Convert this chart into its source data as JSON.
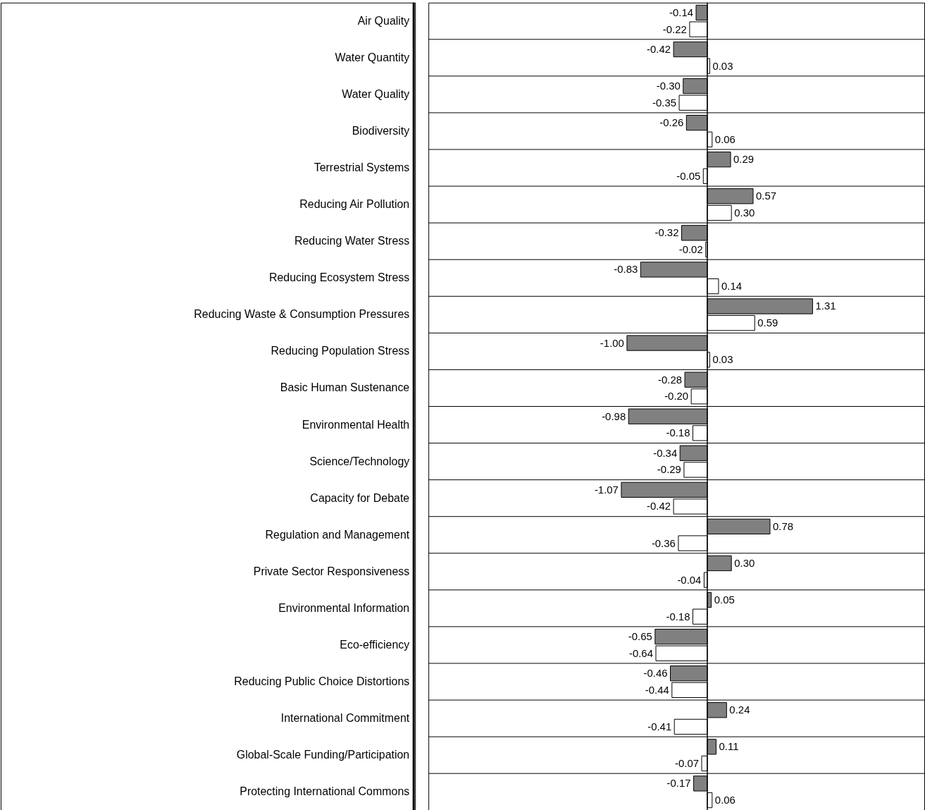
{
  "chart_data": {
    "type": "bar",
    "orientation": "horizontal",
    "categories": [
      "Air Quality",
      "Water Quantity",
      "Water Quality",
      "Biodiversity",
      "Terrestrial Systems",
      "Reducing Air Pollution",
      "Reducing Water Stress",
      "Reducing Ecosystem Stress",
      "Reducing Waste & Consumption Pressures",
      "Reducing Population Stress",
      "Basic Human Sustenance",
      "Environmental Health",
      "Science/Technology",
      "Capacity for Debate",
      "Regulation and Management",
      "Private Sector Responsiveness",
      "Environmental Information",
      "Eco-efficiency",
      "Reducing Public Choice Distortions",
      "International Commitment",
      "Global-Scale Funding/Participation",
      "Protecting International Commons"
    ],
    "series": [
      {
        "color": "#808080",
        "values": [
          -0.14,
          -0.42,
          -0.3,
          -0.26,
          0.29,
          0.57,
          -0.32,
          -0.83,
          1.31,
          -1.0,
          -0.28,
          -0.98,
          -0.34,
          -1.07,
          0.78,
          0.3,
          0.05,
          -0.65,
          -0.46,
          0.24,
          0.11,
          -0.17
        ],
        "value_labels": [
          "-0.14",
          "-0.42",
          "-0.30",
          "-0.26",
          "0.29",
          "0.57",
          "-0.32",
          "-0.83",
          "1.31",
          "-1.00",
          "-0.28",
          "-0.98",
          "-0.34",
          "-1.07",
          "0.78",
          "0.30",
          "0.05",
          "-0.65",
          "-0.46",
          "0.24",
          "0.11",
          "-0.17"
        ]
      },
      {
        "color": "#ffffff",
        "values": [
          -0.22,
          0.03,
          -0.35,
          0.06,
          -0.05,
          0.3,
          -0.02,
          0.14,
          0.59,
          0.03,
          -0.2,
          -0.18,
          -0.29,
          -0.42,
          -0.36,
          -0.04,
          -0.18,
          -0.64,
          -0.44,
          -0.41,
          -0.07,
          0.06
        ],
        "value_labels": [
          "-0.22",
          "0.03",
          "-0.35",
          "0.06",
          "-0.05",
          "0.30",
          "-0.02",
          "0.14",
          "0.59",
          "0.03",
          "-0.20",
          "-0.18",
          "-0.29",
          "-0.42",
          "-0.36",
          "-0.04",
          "-0.18",
          "-0.64",
          "-0.44",
          "-0.41",
          "-0.07",
          "0.06"
        ]
      }
    ],
    "xlim": [
      -3.47,
      2.7
    ],
    "grid": "y",
    "tick_labels": "y",
    "ref_lines": [
      {
        "axis": "x",
        "value": 0,
        "color": "#000000"
      }
    ]
  }
}
